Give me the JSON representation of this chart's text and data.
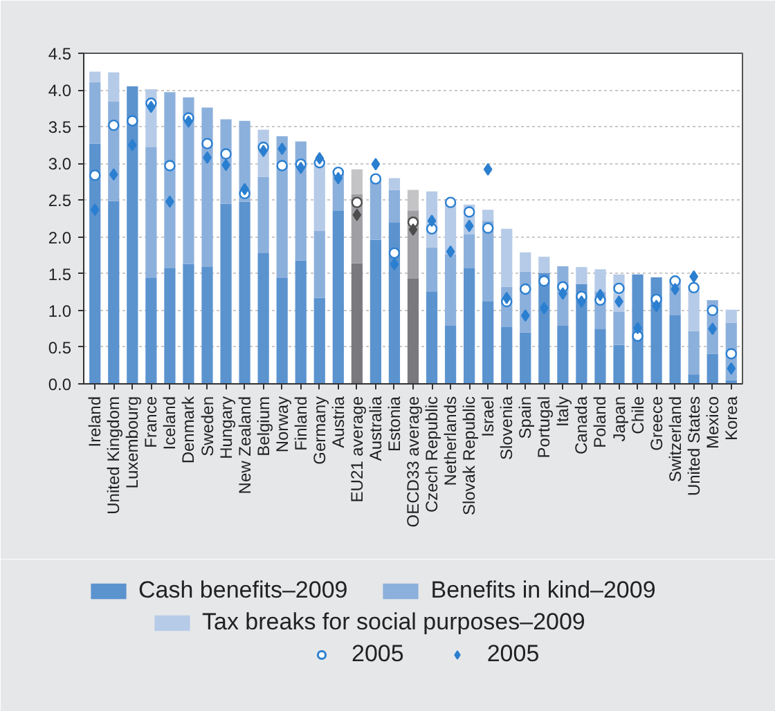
{
  "chart_data": {
    "type": "bar",
    "stacked": true,
    "categories": [
      "Ireland",
      "United Kingdom",
      "Luxembourg",
      "France",
      "Iceland",
      "Denmark",
      "Sweden",
      "Hungary",
      "New Zealand",
      "Belgium",
      "Norway",
      "Finland",
      "Germany",
      "Austria",
      "EU21 average",
      "Australia",
      "Estonia",
      "OECD33 average",
      "Czech Republic",
      "Netherlands",
      "Slovak Republic",
      "Israel",
      "Slovenia",
      "Spain",
      "Portugal",
      "Italy",
      "Canada",
      "Poland",
      "Japan",
      "Chile",
      "Greece",
      "Switzerland",
      "United States",
      "Mexico",
      "Korea"
    ],
    "series": [
      {
        "name": "Cash benefits–2009",
        "color": "#5b93cf",
        "colors": [
          "#5b93cf",
          "#5b93cf",
          "#5b93cf",
          "#5b93cf",
          "#5b93cf",
          "#5b93cf",
          "#5b93cf",
          "#5b93cf",
          "#5b93cf",
          "#5b93cf",
          "#5b93cf",
          "#5b93cf",
          "#5b93cf",
          "#5b93cf",
          "#7a7a7e",
          "#5b93cf",
          "#5b93cf",
          "#7a7a7e",
          "#5b93cf",
          "#5b93cf",
          "#5b93cf",
          "#5b93cf",
          "#5b93cf",
          "#5b93cf",
          "#5b93cf",
          "#5b93cf",
          "#5b93cf",
          "#5b93cf",
          "#5b93cf",
          "#5b93cf",
          "#5b93cf",
          "#5b93cf",
          "#5b93cf",
          "#5b93cf",
          "#5b93cf"
        ],
        "values": [
          3.27,
          2.49,
          4.05,
          1.44,
          1.58,
          1.63,
          1.59,
          2.45,
          2.48,
          1.78,
          1.44,
          1.68,
          1.17,
          2.36,
          1.64,
          1.96,
          2.2,
          1.43,
          1.26,
          0.79,
          1.58,
          1.12,
          0.78,
          0.7,
          1.51,
          0.79,
          1.36,
          0.75,
          0.53,
          1.49,
          1.45,
          0.94,
          0.13,
          0.41,
          0.05
        ]
      },
      {
        "name": "Benefits in kind–2009",
        "color": "#8cb0dc",
        "colors": [
          "#8cb0dc",
          "#8cb0dc",
          "#8cb0dc",
          "#8cb0dc",
          "#8cb0dc",
          "#8cb0dc",
          "#8cb0dc",
          "#8cb0dc",
          "#8cb0dc",
          "#8cb0dc",
          "#8cb0dc",
          "#8cb0dc",
          "#8cb0dc",
          "#8cb0dc",
          "#a0a0a4",
          "#8cb0dc",
          "#8cb0dc",
          "#a0a0a4",
          "#8cb0dc",
          "#8cb0dc",
          "#8cb0dc",
          "#8cb0dc",
          "#8cb0dc",
          "#8cb0dc",
          "#8cb0dc",
          "#8cb0dc",
          "#8cb0dc",
          "#8cb0dc",
          "#8cb0dc",
          "#8cb0dc",
          "#8cb0dc",
          "#8cb0dc",
          "#8cb0dc",
          "#8cb0dc",
          "#8cb0dc"
        ],
        "values": [
          0.84,
          1.35,
          null,
          1.78,
          2.39,
          2.27,
          2.17,
          1.15,
          1.1,
          1.04,
          1.93,
          1.62,
          0.91,
          0.55,
          0.94,
          0.83,
          0.44,
          0.93,
          0.6,
          0.97,
          0.46,
          1.1,
          0.54,
          0.83,
          null,
          0.81,
          null,
          0.51,
          0.45,
          null,
          null,
          0.49,
          0.59,
          0.73,
          0.78
        ]
      },
      {
        "name": "Tax breaks for social purposes–2009",
        "color": "#b6cbe8",
        "colors": [
          "#b6cbe8",
          "#b6cbe8",
          "#b6cbe8",
          "#b6cbe8",
          "#b6cbe8",
          "#b6cbe8",
          "#b6cbe8",
          "#b6cbe8",
          "#b6cbe8",
          "#b6cbe8",
          "#b6cbe8",
          "#b6cbe8",
          "#b6cbe8",
          "#b6cbe8",
          "#c4c4c6",
          "#b6cbe8",
          "#b6cbe8",
          "#c4c4c6",
          "#b6cbe8",
          "#b6cbe8",
          "#b6cbe8",
          "#b6cbe8",
          "#b6cbe8",
          "#b6cbe8",
          "#b6cbe8",
          "#b6cbe8",
          "#b6cbe8",
          "#b6cbe8",
          "#b6cbe8",
          "#b6cbe8",
          "#b6cbe8",
          "#b6cbe8",
          "#b6cbe8",
          "#b6cbe8",
          "#b6cbe8"
        ],
        "values": [
          0.14,
          0.4,
          null,
          0.79,
          null,
          null,
          null,
          null,
          null,
          0.64,
          null,
          null,
          0.96,
          null,
          0.34,
          null,
          0.16,
          0.28,
          0.76,
          0.71,
          0.4,
          0.15,
          0.79,
          0.26,
          0.22,
          null,
          0.23,
          0.3,
          0.51,
          null,
          null,
          null,
          0.6,
          null,
          0.18
        ]
      },
      {
        "name": "2005",
        "type": "scatter",
        "marker": "circle",
        "color": "#2b7fd0",
        "colors": [
          "#2b7fd0",
          "#2b7fd0",
          "#2b7fd0",
          "#2b7fd0",
          "#2b7fd0",
          "#2b7fd0",
          "#2b7fd0",
          "#2b7fd0",
          "#2b7fd0",
          "#2b7fd0",
          "#2b7fd0",
          "#2b7fd0",
          "#2b7fd0",
          "#2b7fd0",
          "#4d4d4d",
          "#2b7fd0",
          "#2b7fd0",
          "#4d4d4d",
          "#2b7fd0",
          "#2b7fd0",
          "#2b7fd0",
          "#2b7fd0",
          "#2b7fd0",
          "#2b7fd0",
          "#2b7fd0",
          "#2b7fd0",
          "#2b7fd0",
          "#2b7fd0",
          "#2b7fd0",
          "#2b7fd0",
          "#2b7fd0",
          "#2b7fd0",
          "#2b7fd0",
          "#2b7fd0",
          "#2b7fd0"
        ],
        "values": [
          2.84,
          3.52,
          3.58,
          3.82,
          2.97,
          3.62,
          3.27,
          3.13,
          2.59,
          3.22,
          2.97,
          2.99,
          3.01,
          2.88,
          2.47,
          2.79,
          1.78,
          2.2,
          2.11,
          2.47,
          2.34,
          2.12,
          1.12,
          1.29,
          1.4,
          1.32,
          1.19,
          1.14,
          1.3,
          0.65,
          1.15,
          1.4,
          1.31,
          1.0,
          0.41
        ]
      },
      {
        "name": "2005",
        "type": "scatter",
        "marker": "diamond",
        "color": "#2b7fd0",
        "colors": [
          "#2b7fd0",
          "#2b7fd0",
          "#2b7fd0",
          "#2b7fd0",
          "#2b7fd0",
          "#2b7fd0",
          "#2b7fd0",
          "#2b7fd0",
          "#2b7fd0",
          "#2b7fd0",
          "#2b7fd0",
          "#2b7fd0",
          "#2b7fd0",
          "#2b7fd0",
          "#4d4d4d",
          "#2b7fd0",
          "#2b7fd0",
          "#4d4d4d",
          "#2b7fd0",
          "#2b7fd0",
          "#2b7fd0",
          "#2b7fd0",
          "#2b7fd0",
          "#2b7fd0",
          "#2b7fd0",
          "#2b7fd0",
          "#2b7fd0",
          "#2b7fd0",
          "#2b7fd0",
          "#2b7fd0",
          "#2b7fd0",
          "#2b7fd0",
          "#2b7fd0",
          "#2b7fd0",
          "#2b7fd0"
        ],
        "values": [
          2.37,
          2.85,
          3.25,
          3.77,
          2.48,
          3.57,
          3.08,
          2.98,
          2.65,
          3.17,
          3.2,
          2.94,
          3.07,
          2.8,
          2.3,
          2.99,
          1.63,
          2.1,
          2.22,
          1.8,
          2.15,
          2.92,
          1.17,
          0.93,
          1.03,
          1.23,
          1.12,
          1.21,
          1.12,
          0.76,
          1.06,
          1.29,
          1.46,
          0.75,
          0.21
        ]
      }
    ],
    "ylim": [
      0,
      4.5
    ],
    "yticks": [
      {
        "value": 0,
        "label": "0.0"
      },
      {
        "value": 0.5,
        "label": "0.5"
      },
      {
        "value": 1,
        "label": "1.0"
      },
      {
        "value": 1.5,
        "label": "1.5"
      },
      {
        "value": 2,
        "label": "2.0"
      },
      {
        "value": 2.5,
        "label": "2.5"
      },
      {
        "value": 3,
        "label": "3.0"
      },
      {
        "value": 3.5,
        "label": "3.5"
      },
      {
        "value": 4,
        "label": "4.0"
      },
      {
        "value": 4.5,
        "label": "4.5"
      }
    ],
    "grid": "y",
    "legend": "bottom"
  }
}
